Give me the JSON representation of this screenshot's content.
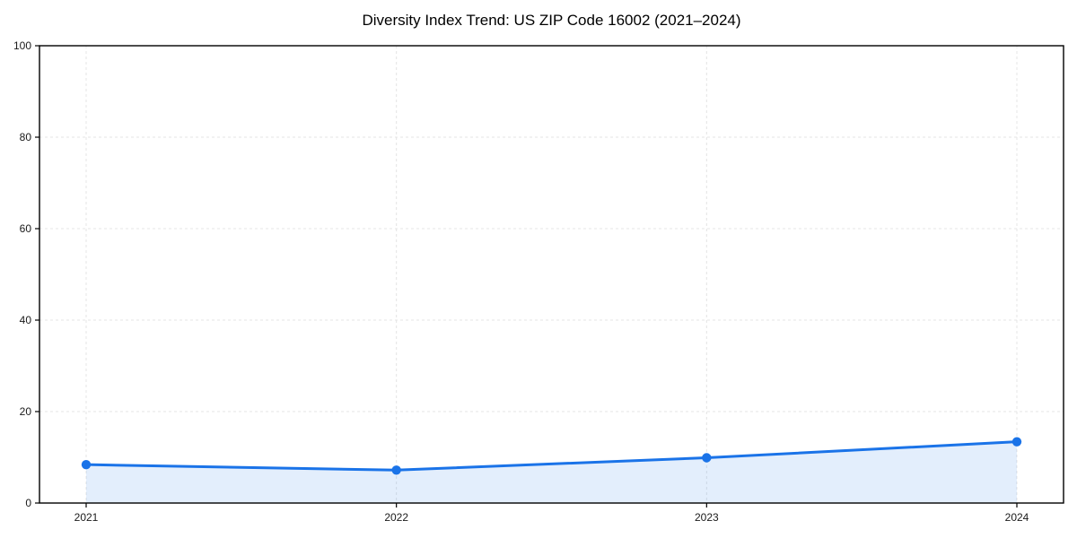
{
  "figure": {
    "title": "Diversity Index Trend: US ZIP Code 16002 (2021–2024)"
  },
  "chart_data": {
    "type": "area",
    "title": "Diversity Index Trend: US ZIP Code 16002 (2021–2024)",
    "x": [
      2021,
      2022,
      2023,
      2024
    ],
    "x_tick_labels": [
      "2021",
      "2022",
      "2023",
      "2024"
    ],
    "values": [
      8.4,
      7.2,
      9.9,
      13.4
    ],
    "xlabel": "",
    "ylabel": "",
    "ylim": [
      0,
      100
    ],
    "yticks": [
      0,
      20,
      40,
      60,
      80,
      100
    ],
    "grid": "dashed",
    "legend": "none",
    "colors": {
      "line": "#1a73e8",
      "marker": "#1a73e8",
      "fill": "rgba(26,115,232,0.12)",
      "grid": "#e4e4e4",
      "spine": "#000000",
      "background": "#ffffff",
      "text": "#1a1a1a"
    }
  }
}
